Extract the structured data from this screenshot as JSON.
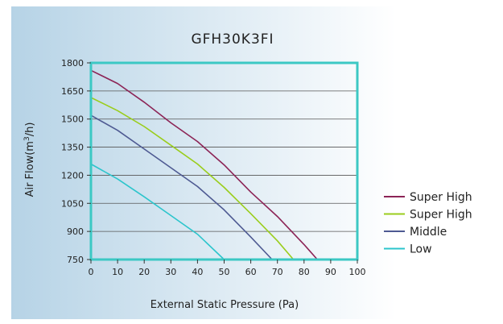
{
  "chart_data": {
    "type": "line",
    "title": "GFH30K3FI",
    "xlabel": "External Static Pressure (Pa)",
    "ylabel": "Air Flow(m3/h)",
    "ylabel_main": "Air Flow(m",
    "ylabel_sup": "3",
    "ylabel_tail": "/h)",
    "xlim": [
      0,
      100
    ],
    "ylim": [
      750,
      1800
    ],
    "x_ticks": [
      0,
      10,
      20,
      30,
      40,
      50,
      60,
      70,
      80,
      90,
      100
    ],
    "y_ticks": [
      750,
      900,
      1050,
      1200,
      1350,
      1500,
      1650,
      1800
    ],
    "grid": true,
    "legend_position": "right",
    "colors": {
      "frame": "#3cc8c4",
      "grid": "#555555",
      "background_left": "#b6d3e6",
      "background_right": "#ffffff"
    },
    "series": [
      {
        "name": "Super High",
        "color": "#8c2456",
        "points": [
          [
            0,
            1760
          ],
          [
            10,
            1690
          ],
          [
            20,
            1590
          ],
          [
            30,
            1480
          ],
          [
            40,
            1380
          ],
          [
            50,
            1255
          ],
          [
            60,
            1110
          ],
          [
            70,
            980
          ],
          [
            80,
            830
          ],
          [
            85,
            750
          ]
        ]
      },
      {
        "name": "Super High",
        "color": "#9acd1c",
        "points": [
          [
            0,
            1615
          ],
          [
            10,
            1545
          ],
          [
            20,
            1460
          ],
          [
            30,
            1360
          ],
          [
            40,
            1260
          ],
          [
            50,
            1135
          ],
          [
            60,
            995
          ],
          [
            70,
            850
          ],
          [
            76,
            750
          ]
        ]
      },
      {
        "name": "Middle",
        "color": "#4e5a92",
        "points": [
          [
            0,
            1520
          ],
          [
            10,
            1440
          ],
          [
            20,
            1340
          ],
          [
            30,
            1240
          ],
          [
            40,
            1140
          ],
          [
            50,
            1015
          ],
          [
            60,
            870
          ],
          [
            68,
            750
          ]
        ]
      },
      {
        "name": "Low",
        "color": "#2cc5cc",
        "points": [
          [
            0,
            1260
          ],
          [
            10,
            1180
          ],
          [
            20,
            1085
          ],
          [
            30,
            985
          ],
          [
            40,
            885
          ],
          [
            50,
            750
          ]
        ]
      }
    ]
  }
}
